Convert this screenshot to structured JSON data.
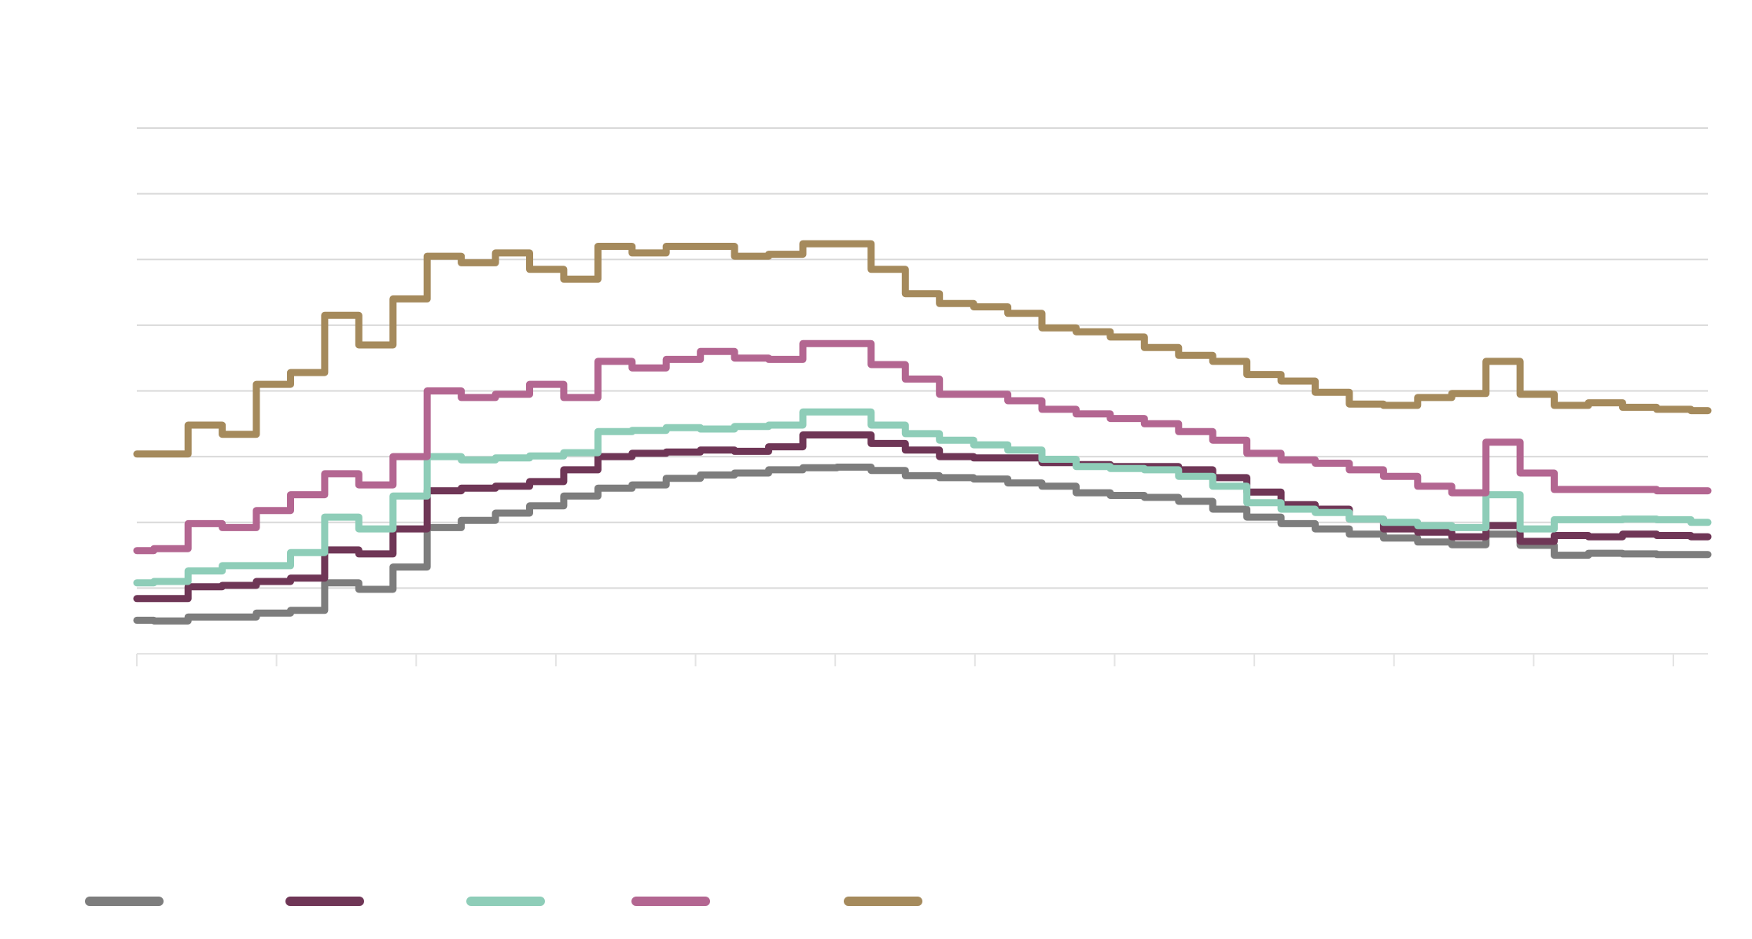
{
  "chart_data": {
    "type": "line",
    "title": "",
    "xlabel": "",
    "ylabel": "",
    "grid": true,
    "legend_position": "bottom-left",
    "ylim": [
      0,
      8
    ],
    "y_gridlines": [
      1,
      2,
      3,
      4,
      5,
      6,
      7,
      8
    ],
    "x_tick_count": 12,
    "x": [
      0,
      3,
      6,
      9,
      12,
      15,
      18,
      21,
      24,
      27,
      30,
      33,
      36,
      39,
      42,
      45,
      48,
      51,
      54,
      57,
      60,
      63,
      66,
      69,
      72,
      75,
      78,
      81,
      84,
      87,
      90,
      93,
      96,
      99,
      102,
      105,
      108,
      111,
      114,
      117,
      120,
      123,
      126,
      129,
      132,
      135,
      138
    ],
    "series": [
      {
        "name": "",
        "color": "#7d7d7d",
        "values": [
          0.51,
          0.5,
          0.56,
          0.56,
          0.62,
          0.66,
          1.08,
          0.98,
          1.32,
          1.92,
          2.03,
          2.14,
          2.25,
          2.4,
          2.52,
          2.57,
          2.67,
          2.72,
          2.75,
          2.8,
          2.83,
          2.84,
          2.79,
          2.71,
          2.68,
          2.66,
          2.6,
          2.55,
          2.45,
          2.41,
          2.38,
          2.32,
          2.2,
          2.08,
          1.98,
          1.9,
          1.82,
          1.76,
          1.7,
          1.66,
          1.82,
          1.65,
          1.5,
          1.53,
          1.52,
          1.51,
          1.51
        ]
      },
      {
        "name": "",
        "color": "#6f3656",
        "values": [
          0.84,
          0.84,
          1.02,
          1.04,
          1.1,
          1.15,
          1.58,
          1.52,
          1.9,
          2.48,
          2.52,
          2.55,
          2.62,
          2.8,
          3.0,
          3.05,
          3.07,
          3.1,
          3.08,
          3.15,
          3.33,
          3.33,
          3.2,
          3.1,
          3.0,
          2.98,
          2.98,
          2.91,
          2.88,
          2.85,
          2.85,
          2.8,
          2.68,
          2.46,
          2.27,
          2.2,
          2.05,
          1.9,
          1.85,
          1.78,
          1.95,
          1.71,
          1.8,
          1.78,
          1.82,
          1.8,
          1.78
        ]
      },
      {
        "name": "",
        "color": "#8ecdb8",
        "values": [
          1.08,
          1.1,
          1.26,
          1.34,
          1.34,
          1.54,
          2.08,
          1.9,
          2.4,
          3.0,
          2.95,
          2.98,
          3.01,
          3.06,
          3.38,
          3.4,
          3.44,
          3.42,
          3.46,
          3.48,
          3.68,
          3.68,
          3.48,
          3.35,
          3.25,
          3.18,
          3.1,
          2.96,
          2.85,
          2.82,
          2.8,
          2.7,
          2.55,
          2.3,
          2.2,
          2.15,
          2.05,
          2.0,
          1.95,
          1.92,
          2.42,
          1.9,
          2.04,
          2.04,
          2.05,
          2.04,
          2.0
        ]
      },
      {
        "name": "",
        "color": "#b36691",
        "values": [
          1.57,
          1.6,
          1.98,
          1.92,
          2.18,
          2.42,
          2.74,
          2.57,
          3.0,
          4.0,
          3.9,
          3.95,
          4.1,
          3.9,
          4.45,
          4.35,
          4.48,
          4.6,
          4.5,
          4.48,
          4.72,
          4.72,
          4.4,
          4.18,
          3.95,
          3.95,
          3.85,
          3.72,
          3.65,
          3.58,
          3.5,
          3.38,
          3.25,
          3.05,
          2.95,
          2.9,
          2.8,
          2.7,
          2.55,
          2.45,
          3.22,
          2.75,
          2.5,
          2.5,
          2.5,
          2.48,
          2.48
        ]
      },
      {
        "name": "",
        "color": "#a58a5c",
        "values": [
          3.04,
          3.04,
          3.48,
          3.34,
          4.1,
          4.28,
          5.15,
          4.7,
          5.4,
          6.05,
          5.95,
          6.1,
          5.85,
          5.7,
          6.2,
          6.1,
          6.2,
          6.2,
          6.05,
          6.08,
          6.24,
          6.24,
          5.85,
          5.48,
          5.33,
          5.28,
          5.18,
          4.96,
          4.9,
          4.82,
          4.66,
          4.54,
          4.45,
          4.25,
          4.15,
          3.98,
          3.8,
          3.78,
          3.9,
          3.96,
          4.45,
          3.95,
          3.78,
          3.82,
          3.75,
          3.72,
          3.7
        ]
      }
    ]
  }
}
